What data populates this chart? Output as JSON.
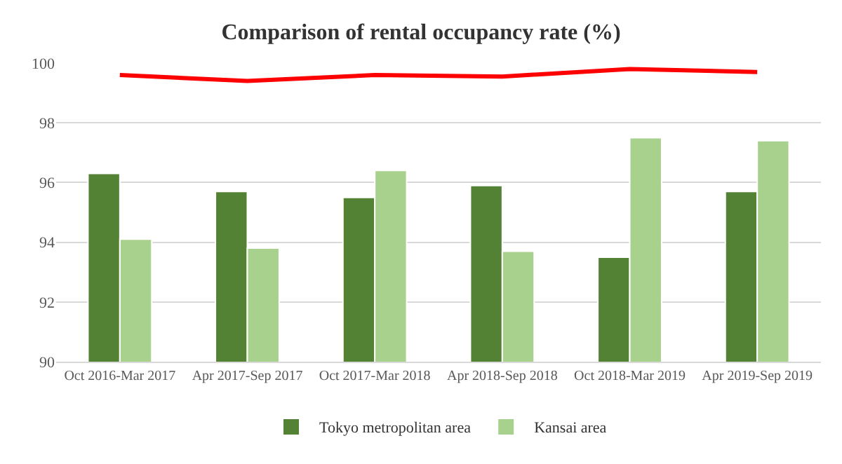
{
  "chart_data": {
    "type": "bar",
    "title": "Comparison of rental occupancy rate (%)",
    "categories": [
      "Oct 2016-Mar 2017",
      "Apr 2017-Sep 2017",
      "Oct 2017-Mar 2018",
      "Apr 2018-Sep 2018",
      "Oct 2018-Mar 2019",
      "Apr 2019-Sep 2019"
    ],
    "series": [
      {
        "name": "Tokyo metropolitan area",
        "color": "#548235",
        "values": [
          96.3,
          95.7,
          95.5,
          95.9,
          93.5,
          95.7
        ]
      },
      {
        "name": "Kansai area",
        "color": "#a9d18e",
        "values": [
          94.1,
          93.8,
          96.4,
          93.7,
          97.5,
          97.4
        ]
      },
      {
        "type": "line",
        "color": "#ff0000",
        "values": [
          99.6,
          99.4,
          99.6,
          99.55,
          99.8,
          99.7
        ]
      }
    ],
    "ylim": [
      90,
      100
    ],
    "yticks": [
      90,
      92,
      94,
      96,
      98,
      100
    ],
    "grid": "y",
    "legend": "bottom",
    "marker": "none",
    "line_style": "solid"
  }
}
